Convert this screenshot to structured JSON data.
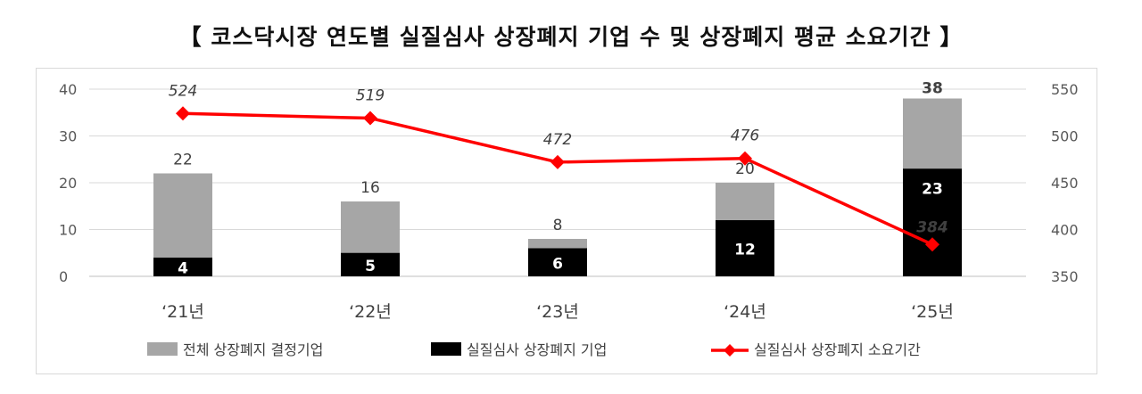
{
  "title": "【 코스닥시장 연도별 실질심사 상장폐지 기업 수 및 상장폐지 평균 소요기간 】",
  "chart_data": {
    "type": "bar",
    "categories": [
      "‘21년",
      "‘22년",
      "‘23년",
      "‘24년",
      "‘25년"
    ],
    "series": [
      {
        "name": "전체 상장폐지 결정기업",
        "kind": "bar",
        "axis": "left",
        "color": "#a6a6a6",
        "values": [
          22,
          16,
          8,
          20,
          38
        ]
      },
      {
        "name": "실질심사 상장폐지 기업",
        "kind": "bar",
        "axis": "left",
        "color": "#000000",
        "values": [
          4,
          5,
          6,
          12,
          23
        ]
      },
      {
        "name": "실질심사 상장폐지 소요기간",
        "kind": "line",
        "axis": "right",
        "color": "#ff0000",
        "values": [
          524,
          519,
          472,
          476,
          384
        ]
      }
    ],
    "y_left": {
      "min": 0,
      "max": 40,
      "ticks": [
        0,
        10,
        20,
        30,
        40
      ]
    },
    "y_right": {
      "min": 350,
      "max": 550,
      "ticks": [
        350,
        400,
        450,
        500,
        550
      ]
    },
    "grid": true,
    "legend": "bottom",
    "highlight": {
      "series": 2,
      "index": 4,
      "color": "#ff0000"
    }
  }
}
